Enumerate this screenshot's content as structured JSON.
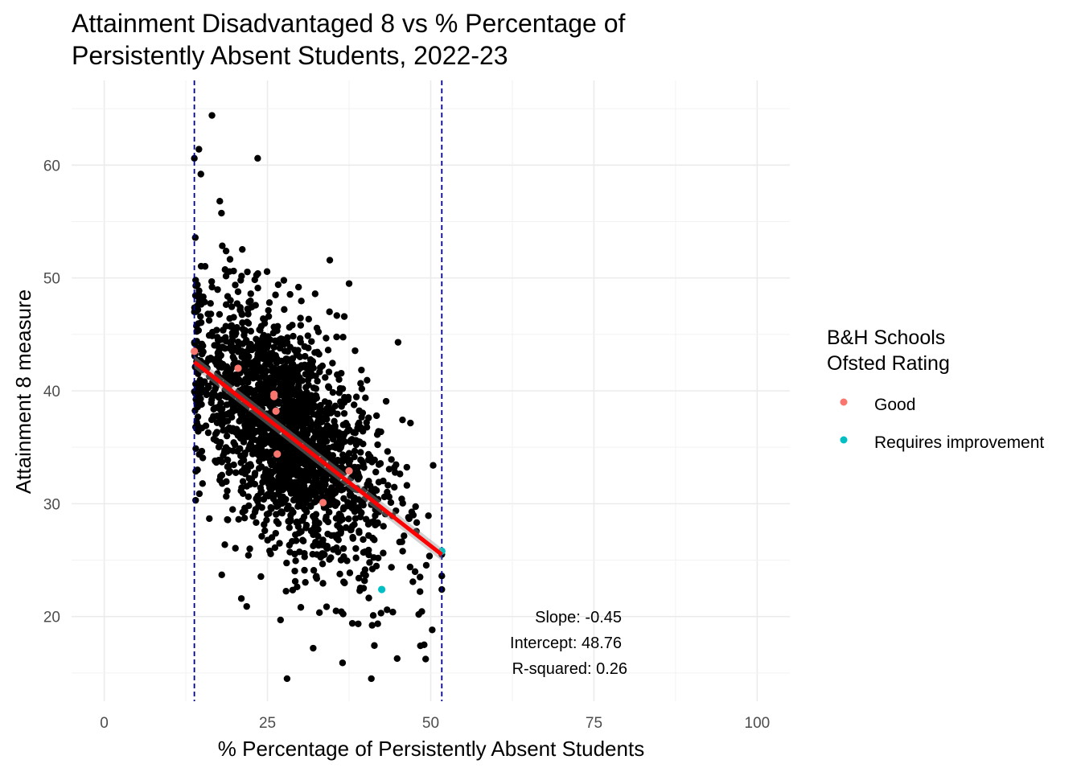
{
  "chart_data": {
    "type": "scatter",
    "title_lines": [
      "Attainment Disadvantaged 8 vs % Percentage of",
      "Persistently Absent Students, 2022-23"
    ],
    "xlabel": "% Percentage of Persistently Absent Students",
    "ylabel": "Attainment 8 measure",
    "xlim": [
      -5,
      105
    ],
    "ylim": [
      12.5,
      67.5
    ],
    "x_ticks": [
      0,
      25,
      50,
      75,
      100
    ],
    "y_ticks": [
      20,
      30,
      40,
      50,
      60
    ],
    "grid": true,
    "background_cloud": {
      "color": "#000000",
      "n_points": 2100,
      "x_range": [
        13.8,
        51.7
      ],
      "x_mean": 28.0,
      "x_sd": 7.5,
      "residual_sd": 4.8,
      "y_range": [
        14.5,
        64.5
      ]
    },
    "background_points_extremes": [
      {
        "x": 16.5,
        "y": 64.4
      },
      {
        "x": 23.5,
        "y": 60.6
      },
      {
        "x": 13.8,
        "y": 60.6
      },
      {
        "x": 14.5,
        "y": 61.4
      },
      {
        "x": 14.8,
        "y": 59.2
      },
      {
        "x": 17.7,
        "y": 56.8
      },
      {
        "x": 28.0,
        "y": 14.5
      },
      {
        "x": 32.0,
        "y": 17.2
      },
      {
        "x": 36.5,
        "y": 15.9
      },
      {
        "x": 27.0,
        "y": 19.7
      },
      {
        "x": 38.0,
        "y": 19.4
      },
      {
        "x": 49.0,
        "y": 17.5
      },
      {
        "x": 41.2,
        "y": 20.1
      },
      {
        "x": 44.2,
        "y": 20.4
      },
      {
        "x": 35.5,
        "y": 20.5
      },
      {
        "x": 21.0,
        "y": 21.6
      },
      {
        "x": 18.0,
        "y": 23.7
      },
      {
        "x": 45.0,
        "y": 44.3
      },
      {
        "x": 37.5,
        "y": 49.5
      },
      {
        "x": 34.5,
        "y": 47.0
      },
      {
        "x": 14.0,
        "y": 30.3
      },
      {
        "x": 51.7,
        "y": 22.4
      },
      {
        "x": 51.7,
        "y": 23.6
      },
      {
        "x": 51.7,
        "y": 25.5
      }
    ],
    "series": [
      {
        "name": "Good",
        "color": "#F8766D",
        "points": [
          {
            "x": 13.8,
            "y": 43.5
          },
          {
            "x": 20.5,
            "y": 42.0
          },
          {
            "x": 26.0,
            "y": 39.5
          },
          {
            "x": 26.0,
            "y": 39.7
          },
          {
            "x": 26.3,
            "y": 38.2
          },
          {
            "x": 26.5,
            "y": 34.4
          },
          {
            "x": 33.5,
            "y": 30.1
          },
          {
            "x": 37.5,
            "y": 32.9
          }
        ]
      },
      {
        "name": "Requires improvement",
        "color": "#00BFC4",
        "points": [
          {
            "x": 42.5,
            "y": 22.4
          },
          {
            "x": 51.7,
            "y": 25.8
          }
        ]
      }
    ],
    "regression": {
      "color": "#ff0000",
      "x_from": 13.8,
      "x_to": 51.7,
      "slope": -0.45,
      "intercept": 48.76
    },
    "vlines": [
      {
        "x": 13.8,
        "color": "#00008B",
        "style": "dashed"
      },
      {
        "x": 51.7,
        "color": "#00008B",
        "style": "dashed"
      }
    ],
    "legend": {
      "title_lines": [
        "B&H Schools",
        "Ofsted Rating"
      ],
      "items": [
        {
          "label": "Good",
          "color": "#F8766D"
        },
        {
          "label": "Requires improvement",
          "color": "#00BFC4"
        }
      ],
      "placement": "right"
    },
    "annotations": [
      "Slope: -0.45",
      "Intercept: 48.76",
      "R-squared: 0.26"
    ]
  }
}
